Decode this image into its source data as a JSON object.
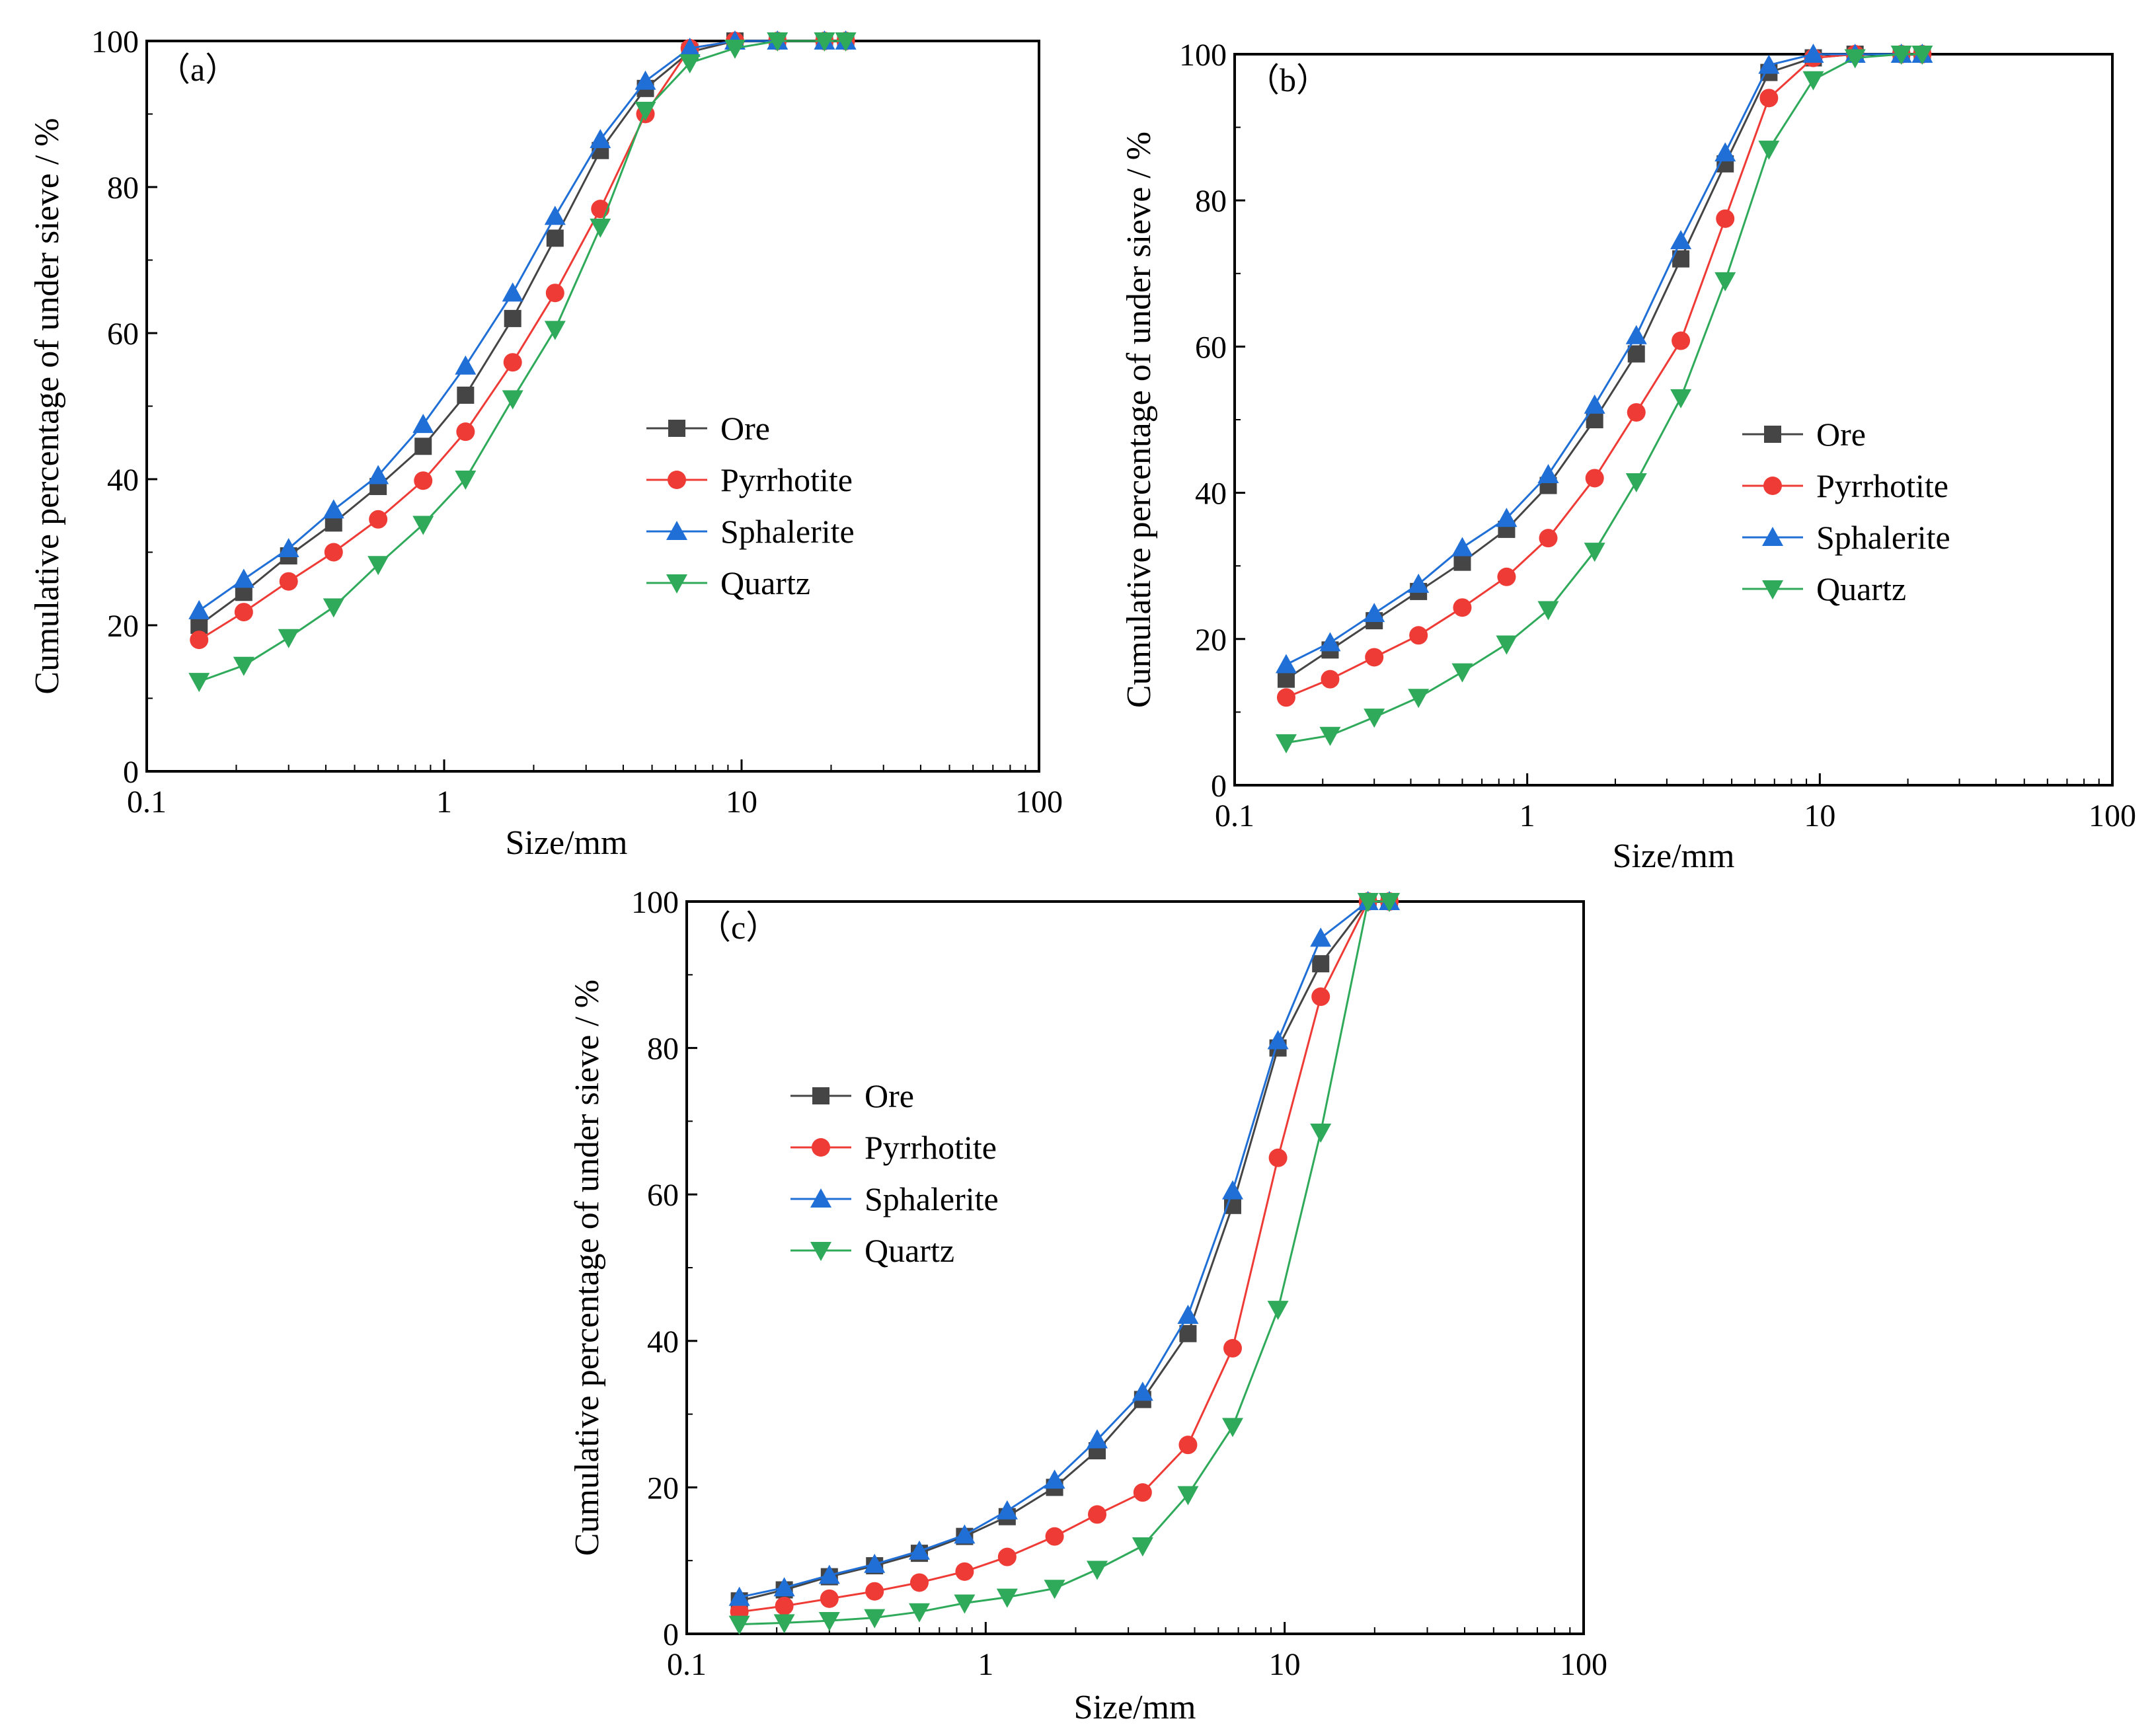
{
  "figure": {
    "description_free": true
  },
  "styles": {
    "series_colors": {
      "Ore": "#454545",
      "Pyrrhotite": "#ef3b36",
      "Sphalerite": "#1f6fd6",
      "Quartz": "#2faa5a"
    },
    "series_markers": {
      "Ore": "square",
      "Pyrrhotite": "circle",
      "Sphalerite": "triangle-up",
      "Quartz": "triangle-down"
    }
  },
  "chart_data": [
    {
      "panel_label": "（a）",
      "type": "line",
      "xscale": "log",
      "xlabel": "Size/mm",
      "ylabel": "Cumulative percentage of under sieve / %",
      "xlim": [
        0.1,
        100
      ],
      "ylim": [
        0,
        100
      ],
      "xticks": [
        0.1,
        1,
        10,
        100
      ],
      "xtick_labels": [
        "0.1",
        "1",
        "10",
        "100"
      ],
      "yticks": [
        0,
        20,
        40,
        60,
        80,
        100
      ],
      "ytick_labels": [
        "0",
        "20",
        "40",
        "60",
        "80",
        "100"
      ],
      "legend_position": "center-right",
      "x": [
        0.15,
        0.212,
        0.3,
        0.425,
        0.6,
        0.85,
        1.18,
        1.7,
        2.36,
        3.35,
        4.75,
        6.7,
        9.5,
        13.2,
        19,
        22.4
      ],
      "series": [
        {
          "name": "Ore",
          "values": [
            20,
            24.5,
            29.5,
            34,
            39,
            44.5,
            51.5,
            62,
            73,
            85,
            93.5,
            98.5,
            100,
            100,
            100,
            100
          ]
        },
        {
          "name": "Pyrrhotite",
          "values": [
            18,
            21.8,
            26,
            30,
            34.5,
            39.8,
            46.5,
            56,
            65.5,
            77,
            90,
            99,
            100,
            100,
            100,
            100
          ]
        },
        {
          "name": "Sphalerite",
          "values": [
            22,
            26.3,
            30.5,
            35.8,
            40.5,
            47.5,
            55.5,
            65.5,
            76,
            86.5,
            94.5,
            99,
            100,
            100,
            100,
            100
          ]
        },
        {
          "name": "Quartz",
          "values": [
            12.3,
            14.5,
            18.3,
            22.5,
            28.3,
            33.8,
            40,
            51,
            60.5,
            74.5,
            90.5,
            97,
            99,
            100,
            100,
            100
          ]
        }
      ]
    },
    {
      "panel_label": "（b）",
      "type": "line",
      "xscale": "log",
      "xlabel": "Size/mm",
      "ylabel": "Cumulative percentage of under sieve / %",
      "xlim": [
        0.1,
        100
      ],
      "ylim": [
        0,
        100
      ],
      "xticks": [
        0.1,
        1,
        10,
        100
      ],
      "xtick_labels": [
        "0.1",
        "1",
        "10",
        "100"
      ],
      "yticks": [
        0,
        20,
        40,
        60,
        80,
        100
      ],
      "ytick_labels": [
        "0",
        "20",
        "40",
        "60",
        "80",
        "100"
      ],
      "legend_position": "center-right",
      "x": [
        0.15,
        0.212,
        0.3,
        0.425,
        0.6,
        0.85,
        1.18,
        1.7,
        2.36,
        3.35,
        4.75,
        6.7,
        9.5,
        13.2,
        19,
        22.4
      ],
      "series": [
        {
          "name": "Ore",
          "values": [
            14.5,
            18.5,
            22.5,
            26.5,
            30.5,
            35,
            41,
            50,
            59,
            72,
            85,
            97.5,
            99.5,
            100,
            100,
            100
          ]
        },
        {
          "name": "Pyrrhotite",
          "values": [
            12,
            14.5,
            17.5,
            20.5,
            24.3,
            28.5,
            33.8,
            42,
            51,
            60.8,
            77.5,
            94,
            99.5,
            100,
            100,
            100
          ]
        },
        {
          "name": "Sphalerite",
          "values": [
            16.5,
            19.5,
            23.5,
            27.5,
            32.5,
            36.5,
            42.5,
            52,
            61.5,
            74.5,
            86.5,
            98.5,
            100,
            100,
            100,
            100
          ]
        },
        {
          "name": "Quartz",
          "values": [
            5.8,
            6.8,
            9.3,
            12,
            15.5,
            19.3,
            24,
            32,
            41.5,
            53,
            69,
            87,
            96.5,
            99.5,
            100,
            100
          ]
        }
      ]
    },
    {
      "panel_label": "（c）",
      "type": "line",
      "xscale": "log",
      "xlabel": "Size/mm",
      "ylabel": "Cumulative percentage of under sieve / %",
      "xlim": [
        0.1,
        100
      ],
      "ylim": [
        0,
        100
      ],
      "xticks": [
        0.1,
        1,
        10,
        100
      ],
      "xtick_labels": [
        "0.1",
        "1",
        "10",
        "100"
      ],
      "yticks": [
        0,
        20,
        40,
        60,
        80,
        100
      ],
      "ytick_labels": [
        "0",
        "20",
        "40",
        "60",
        "80",
        "100"
      ],
      "legend_position": "upper-left",
      "x": [
        0.15,
        0.212,
        0.3,
        0.425,
        0.6,
        0.85,
        1.18,
        1.7,
        2.36,
        3.35,
        4.75,
        6.7,
        9.5,
        13.2,
        19,
        22.4
      ],
      "series": [
        {
          "name": "Ore",
          "values": [
            4.5,
            6,
            7.8,
            9.3,
            11,
            13.3,
            16,
            20,
            25,
            32,
            41,
            58.5,
            80,
            91.5,
            100,
            100
          ]
        },
        {
          "name": "Pyrrhotite",
          "values": [
            3,
            3.8,
            4.8,
            5.8,
            7,
            8.5,
            10.5,
            13.3,
            16.3,
            19.3,
            25.8,
            39,
            65,
            87,
            100,
            100
          ]
        },
        {
          "name": "Sphalerite",
          "values": [
            5,
            6.3,
            8,
            9.5,
            11.3,
            13.5,
            16.8,
            21,
            26.5,
            33,
            43.5,
            60.5,
            81,
            95,
            100,
            100
          ]
        },
        {
          "name": "Quartz",
          "values": [
            1.3,
            1.5,
            1.8,
            2.2,
            3,
            4.2,
            5,
            6.2,
            8.8,
            12,
            19,
            28.3,
            44.3,
            68.5,
            100,
            100
          ]
        }
      ]
    }
  ]
}
